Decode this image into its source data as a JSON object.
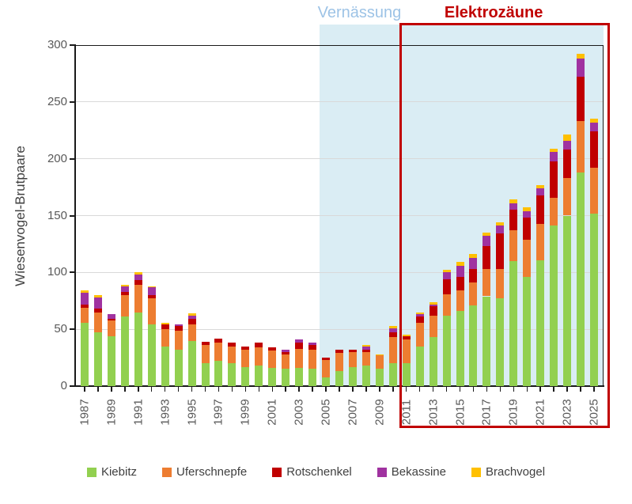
{
  "chart_data": {
    "type": "bar",
    "stacked": true,
    "title": "",
    "xlabel": "",
    "ylabel": "Wiesenvogel-Brutpaare",
    "ylim": [
      0,
      300
    ],
    "yticks": [
      0,
      50,
      100,
      150,
      200,
      250,
      300
    ],
    "grid": true,
    "legend_position": "bottom",
    "categories": [
      1987,
      1988,
      1989,
      1990,
      1991,
      1992,
      1993,
      1994,
      1995,
      1996,
      1997,
      1998,
      1999,
      2000,
      2001,
      2002,
      2003,
      2004,
      2005,
      2006,
      2007,
      2008,
      2009,
      2010,
      2011,
      2012,
      2013,
      2014,
      2015,
      2016,
      2017,
      2018,
      2019,
      2020,
      2021,
      2022,
      2023,
      2024,
      2025
    ],
    "xtick_labels": [
      "1987",
      "1989",
      "1991",
      "1993",
      "1995",
      "1997",
      "1999",
      "2001",
      "2003",
      "2005",
      "2007",
      "2009",
      "2011",
      "2013",
      "2015",
      "2017",
      "2019",
      "2021",
      "2023",
      "2025"
    ],
    "series": [
      {
        "name": "Kiebitz",
        "color": "#92d050",
        "values": [
          56,
          47,
          44,
          61,
          65,
          54,
          35,
          32,
          40,
          20,
          22,
          20,
          17,
          18,
          16,
          15,
          16,
          15,
          8,
          13,
          17,
          18,
          15,
          20,
          20,
          35,
          43,
          62,
          66,
          71,
          79,
          77,
          110,
          96,
          111,
          141,
          150,
          188,
          152
        ]
      },
      {
        "name": "Uferschnepfe",
        "color": "#ed7d31",
        "values": [
          13,
          18,
          14,
          19,
          24,
          23,
          15,
          17,
          14,
          16,
          16,
          15,
          15,
          16,
          15,
          13,
          17,
          17,
          15,
          16,
          13,
          12,
          12,
          23,
          21,
          21,
          19,
          19,
          18,
          20,
          24,
          26,
          27,
          33,
          32,
          25,
          33,
          45,
          40
        ]
      },
      {
        "name": "Rotschenkel",
        "color": "#c00000",
        "values": [
          3,
          3,
          1,
          3,
          4,
          3,
          4,
          4,
          5,
          3,
          4,
          3,
          3,
          4,
          3,
          2,
          5,
          4,
          2,
          3,
          2,
          2,
          0,
          4,
          3,
          5,
          8,
          13,
          12,
          12,
          20,
          31,
          18,
          19,
          25,
          32,
          25,
          39,
          32
        ]
      },
      {
        "name": "Bekassine",
        "color": "#a032a0",
        "values": [
          10,
          10,
          4,
          5,
          5,
          7,
          0,
          1,
          3,
          0,
          0,
          0,
          0,
          0,
          0,
          2,
          3,
          2,
          0,
          0,
          0,
          3,
          0,
          4,
          0,
          2,
          2,
          6,
          10,
          10,
          9,
          7,
          6,
          6,
          6,
          8,
          8,
          16,
          8
        ]
      },
      {
        "name": "Brachvogel",
        "color": "#ffc000",
        "values": [
          2,
          2,
          0,
          1,
          2,
          1,
          2,
          0,
          2,
          0,
          0,
          0,
          0,
          0,
          0,
          0,
          0,
          0,
          0,
          0,
          0,
          1,
          1,
          2,
          1,
          2,
          2,
          2,
          3,
          3,
          3,
          3,
          3,
          3,
          3,
          3,
          5,
          4,
          3
        ]
      }
    ],
    "regions": [
      {
        "label": "Vernässung",
        "start_year": 2005,
        "end_year": 2025,
        "fill": "#daedf4",
        "label_color": "#9dc3e6"
      },
      {
        "label": "Elektrozäune",
        "start_year": 2011,
        "end_year": 2025,
        "border_color": "#c00000",
        "label_color": "#c00000"
      }
    ],
    "colors": {
      "grid": "#d9d9d9",
      "axis": "#1a1a1a",
      "tick_text": "#595959",
      "legend_text": "#404040"
    }
  }
}
